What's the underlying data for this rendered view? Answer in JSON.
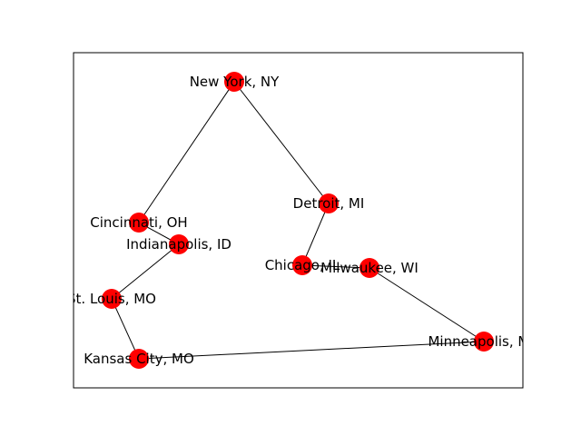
{
  "graph": {
    "node_color": "#ff0000",
    "edge_color": "#000000",
    "nodes": [
      {
        "id": "ny",
        "label": "New York, NY"
      },
      {
        "id": "det",
        "label": "Detroit, MI"
      },
      {
        "id": "cin",
        "label": "Cincinnati, OH"
      },
      {
        "id": "ind",
        "label": "Indianapolis, ID"
      },
      {
        "id": "chi",
        "label": "Chicago, IL"
      },
      {
        "id": "mil",
        "label": "Milwaukee, WI"
      },
      {
        "id": "stl",
        "label": "St. Louis, MO"
      },
      {
        "id": "min",
        "label": "Minneapolis, MN"
      },
      {
        "id": "kc",
        "label": "Kansas City, MO"
      }
    ],
    "edges": [
      [
        "ny",
        "cin"
      ],
      [
        "ny",
        "det"
      ],
      [
        "det",
        "chi"
      ],
      [
        "chi",
        "mil"
      ],
      [
        "mil",
        "min"
      ],
      [
        "min",
        "kc"
      ],
      [
        "kc",
        "stl"
      ],
      [
        "stl",
        "ind"
      ],
      [
        "ind",
        "cin"
      ]
    ]
  }
}
